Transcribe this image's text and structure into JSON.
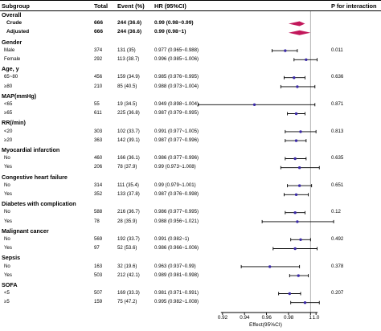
{
  "headers": {
    "subgroup": "Subgroup",
    "total": "Total",
    "event": "Event (%)",
    "hr": "HR (95%CI)",
    "p": "P for interaction"
  },
  "colors": {
    "point": "#3b2aa8",
    "diamond": "#c2185b",
    "line": "#000000",
    "ref": "#9e9e9e"
  },
  "chart_data": {
    "type": "forest",
    "title": "",
    "xlabel": "Effect(95%CI)",
    "xlim": [
      0.915,
      1.01
    ],
    "xticks": [
      "0.92",
      "0.94",
      "0.96",
      "0.98",
      "1",
      "1.0"
    ],
    "tick_values": [
      0.92,
      0.94,
      0.96,
      0.98,
      1.0,
      1.005
    ],
    "reference_line": 1.0,
    "rows": [
      {
        "kind": "group",
        "label": "Overall"
      },
      {
        "kind": "summary",
        "label": "Crude",
        "total": "666",
        "event": "244 (36.6)",
        "hr_text": "0.99 (0.98~0.99)",
        "hr": 0.99,
        "lo": 0.98,
        "hi": 0.99,
        "p": ""
      },
      {
        "kind": "summary",
        "label": "Adjusted",
        "total": "666",
        "event": "244 (36.6)",
        "hr_text": "0.99 (0.98~1)",
        "hr": 0.99,
        "lo": 0.98,
        "hi": 1.0,
        "p": ""
      },
      {
        "kind": "group",
        "label": "Gender"
      },
      {
        "kind": "sub",
        "label": "Male",
        "total": "374",
        "event": "131 (35)",
        "hr_text": "0.977 (0.965~0.988)",
        "hr": 0.977,
        "lo": 0.965,
        "hi": 0.988,
        "p": "0.011"
      },
      {
        "kind": "sub",
        "label": "Female",
        "total": "292",
        "event": "113 (38.7)",
        "hr_text": "0.996 (0.985~1.006)",
        "hr": 0.996,
        "lo": 0.985,
        "hi": 1.006,
        "p": ""
      },
      {
        "kind": "group",
        "label": "Age, y"
      },
      {
        "kind": "sub",
        "label": "65~80",
        "total": "456",
        "event": "159 (34.9)",
        "hr_text": "0.985 (0.976~0.995)",
        "hr": 0.985,
        "lo": 0.976,
        "hi": 0.995,
        "p": "0.636"
      },
      {
        "kind": "sub",
        "label": "≥80",
        "total": "210",
        "event": "85 (40.5)",
        "hr_text": "0.988 (0.973~1.004)",
        "hr": 0.988,
        "lo": 0.973,
        "hi": 1.004,
        "p": ""
      },
      {
        "kind": "group",
        "label": "MAP(mmHg)"
      },
      {
        "kind": "sub",
        "label": "<65",
        "total": "55",
        "event": "19 (34.5)",
        "hr_text": "0.949 (0.898~1.004)",
        "hr": 0.949,
        "lo": 0.898,
        "hi": 1.004,
        "p": "0.871"
      },
      {
        "kind": "sub",
        "label": "≥65",
        "total": "611",
        "event": "225 (36.8)",
        "hr_text": "0.987 (0.979~0.995)",
        "hr": 0.987,
        "lo": 0.979,
        "hi": 0.995,
        "p": ""
      },
      {
        "kind": "group",
        "label": "RR(/min)"
      },
      {
        "kind": "sub",
        "label": "<20",
        "total": "303",
        "event": "102 (33.7)",
        "hr_text": "0.991 (0.977~1.005)",
        "hr": 0.991,
        "lo": 0.977,
        "hi": 1.005,
        "p": "0.813"
      },
      {
        "kind": "sub",
        "label": "≥20",
        "total": "363",
        "event": "142 (39.1)",
        "hr_text": "0.987 (0.977~0.996)",
        "hr": 0.987,
        "lo": 0.977,
        "hi": 0.996,
        "p": ""
      },
      {
        "kind": "group",
        "label": "Myocardial infarction"
      },
      {
        "kind": "sub",
        "label": "No",
        "total": "460",
        "event": "166 (36.1)",
        "hr_text": "0.986 (0.977~0.996)",
        "hr": 0.986,
        "lo": 0.977,
        "hi": 0.996,
        "p": "0.635"
      },
      {
        "kind": "sub",
        "label": "Yes",
        "total": "206",
        "event": "78 (37.9)",
        "hr_text": "0.99 (0.973~1.008)",
        "hr": 0.99,
        "lo": 0.973,
        "hi": 1.008,
        "p": ""
      },
      {
        "kind": "group",
        "label": "Congestive heart failure"
      },
      {
        "kind": "sub",
        "label": "No",
        "total": "314",
        "event": "111 (35.4)",
        "hr_text": "0.99 (0.979~1.001)",
        "hr": 0.99,
        "lo": 0.979,
        "hi": 1.001,
        "p": "0.651"
      },
      {
        "kind": "sub",
        "label": "Yes",
        "total": "352",
        "event": "133 (37.8)",
        "hr_text": "0.987 (0.976~0.998)",
        "hr": 0.987,
        "lo": 0.976,
        "hi": 0.998,
        "p": ""
      },
      {
        "kind": "group",
        "label": "Diabetes with complication"
      },
      {
        "kind": "sub",
        "label": "No",
        "total": "588",
        "event": "216 (36.7)",
        "hr_text": "0.986 (0.977~0.995)",
        "hr": 0.986,
        "lo": 0.977,
        "hi": 0.995,
        "p": "0.12"
      },
      {
        "kind": "sub",
        "label": "Yes",
        "total": "78",
        "event": "28 (35.9)",
        "hr_text": "0.988 (0.956~1.021)",
        "hr": 0.988,
        "lo": 0.956,
        "hi": 1.021,
        "p": ""
      },
      {
        "kind": "group",
        "label": "Malignant cancer"
      },
      {
        "kind": "sub",
        "label": "No",
        "total": "569",
        "event": "192 (33.7)",
        "hr_text": "0.991 (0.982~1)",
        "hr": 0.991,
        "lo": 0.982,
        "hi": 1.0,
        "p": "0.492"
      },
      {
        "kind": "sub",
        "label": "Yes",
        "total": "97",
        "event": "52 (53.6)",
        "hr_text": "0.986 (0.966~1.006)",
        "hr": 0.986,
        "lo": 0.966,
        "hi": 1.006,
        "p": ""
      },
      {
        "kind": "group",
        "label": "Sepsis"
      },
      {
        "kind": "sub",
        "label": "No",
        "total": "163",
        "event": "32 (19.6)",
        "hr_text": "0.963 (0.937~0.99)",
        "hr": 0.963,
        "lo": 0.937,
        "hi": 0.99,
        "p": "0.378"
      },
      {
        "kind": "sub",
        "label": "Yes",
        "total": "503",
        "event": "212 (42.1)",
        "hr_text": "0.989 (0.981~0.998)",
        "hr": 0.989,
        "lo": 0.981,
        "hi": 0.998,
        "p": ""
      },
      {
        "kind": "group",
        "label": "SOFA"
      },
      {
        "kind": "sub",
        "label": "<5",
        "total": "507",
        "event": "169 (33.3)",
        "hr_text": "0.981 (0.971~0.991)",
        "hr": 0.981,
        "lo": 0.971,
        "hi": 0.991,
        "p": "0.207"
      },
      {
        "kind": "sub",
        "label": "≥5",
        "total": "159",
        "event": "75 (47.2)",
        "hr_text": "0.995 (0.982~1.008)",
        "hr": 0.995,
        "lo": 0.982,
        "hi": 1.008,
        "p": ""
      }
    ]
  }
}
